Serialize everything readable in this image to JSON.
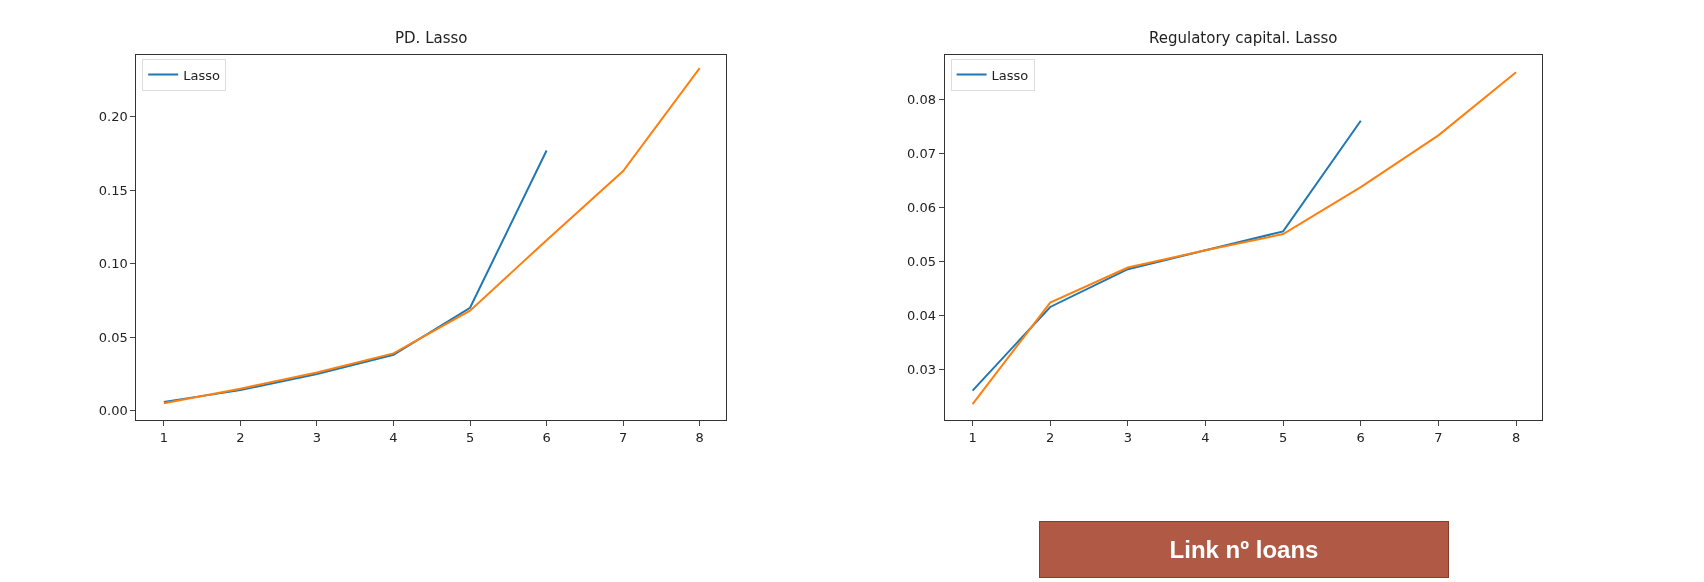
{
  "chart_data": [
    {
      "type": "line",
      "title": "PD. Lasso",
      "x": [
        1,
        2,
        3,
        4,
        5,
        6,
        7,
        8
      ],
      "xlim": [
        0.64,
        8.34
      ],
      "xticks": [
        1,
        2,
        3,
        4,
        5,
        6,
        7,
        8
      ],
      "ylim": [
        -0.0065,
        0.242
      ],
      "yticks": [
        {
          "value": 0,
          "label": "0.00"
        },
        0.05,
        {
          "value": 0.1,
          "label": "0.10"
        },
        0.15,
        {
          "value": 0.2,
          "label": "0.20"
        }
      ],
      "legend": "top left",
      "series": [
        {
          "name": "Lasso",
          "color": "#1f77b4",
          "x": [
            1,
            2,
            3,
            4,
            5,
            6
          ],
          "values": [
            0.006,
            0.014,
            0.025,
            0.038,
            0.07,
            0.177
          ]
        },
        {
          "color": "#ff7f0e",
          "values": [
            0.005,
            0.015,
            0.026,
            0.039,
            0.068,
            0.116,
            0.163,
            0.233
          ]
        }
      ]
    },
    {
      "type": "line",
      "title": "Regulatory capital. Lasso",
      "x": [
        1,
        2,
        3,
        4,
        5,
        6,
        7,
        8
      ],
      "xlim": [
        0.64,
        8.34
      ],
      "xticks": [
        1,
        2,
        3,
        4,
        5,
        6,
        7,
        8
      ],
      "ylim": [
        0.0205,
        0.0882
      ],
      "yticks": [
        0.03,
        0.04,
        0.05,
        0.06,
        0.07,
        0.08
      ],
      "legend": "top left",
      "annotations": [
        "Link nº loans"
      ],
      "series": [
        {
          "name": "Lasso",
          "color": "#1f77b4",
          "x": [
            1,
            2,
            3,
            4,
            5,
            6
          ],
          "values": [
            0.026,
            0.0415,
            0.0485,
            0.052,
            0.0555,
            0.076
          ]
        },
        {
          "color": "#ff7f0e",
          "values": [
            0.0235,
            0.0423,
            0.0488,
            0.052,
            0.055,
            0.0637,
            0.0733,
            0.085
          ]
        }
      ]
    }
  ]
}
